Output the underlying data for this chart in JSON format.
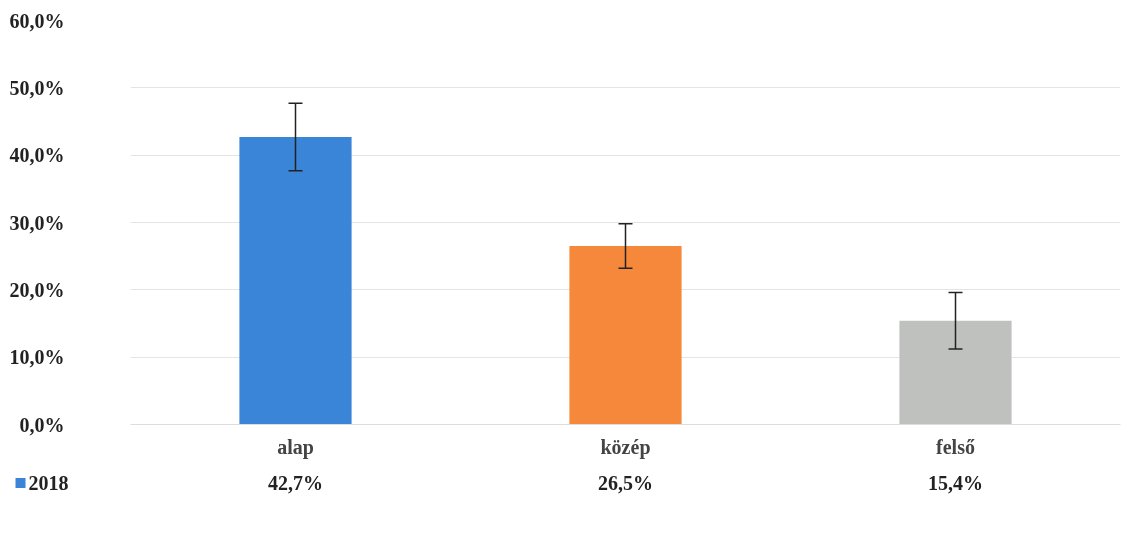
{
  "chart_data": {
    "type": "bar",
    "categories": [
      "alap",
      "közép",
      "felső"
    ],
    "series": [
      {
        "name": "2018",
        "color": "#3a85d8",
        "colors": [
          "#3a85d8",
          "#f5883a",
          "#bfc1bf"
        ],
        "values": [
          42.7,
          26.5,
          15.4
        ],
        "errors": [
          5.0,
          3.3,
          4.2
        ]
      }
    ],
    "value_labels": [
      "42,7%",
      "26,5%",
      "15,4%"
    ],
    "ylim": [
      0,
      60
    ],
    "yticks": [
      {
        "value": 0,
        "label": "0,0%"
      },
      {
        "value": 10,
        "label": "10,0%"
      },
      {
        "value": 20,
        "label": "20,0%"
      },
      {
        "value": 30,
        "label": "30,0%"
      },
      {
        "value": 40,
        "label": "40,0%"
      },
      {
        "value": 50,
        "label": "50,0%"
      },
      {
        "value": 60,
        "label": "60,0%"
      }
    ],
    "grid": "y",
    "legend": "bottom"
  }
}
